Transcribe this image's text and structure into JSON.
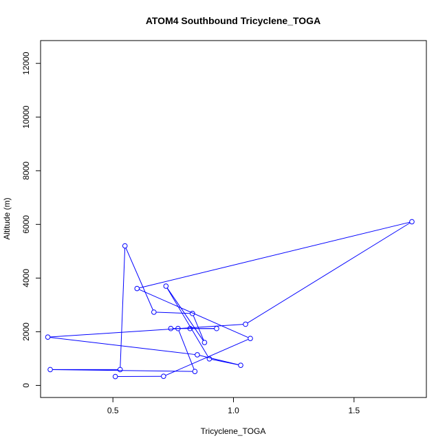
{
  "chart_data": {
    "type": "line",
    "title": "ATOM4 Southbound Tricyclene_TOGA",
    "xlabel": "Tricyclene_TOGA",
    "ylabel": "Altitude (m)",
    "xlim": [
      0.2,
      1.8
    ],
    "ylim": [
      -450,
      12850
    ],
    "xticks": [
      0.5,
      1.0,
      1.5
    ],
    "xtick_labels": [
      "0.5",
      "1.0",
      "1.5"
    ],
    "yticks": [
      0,
      2000,
      4000,
      6000,
      8000,
      10000,
      12000
    ],
    "ytick_labels": [
      "0",
      "2000",
      "4000",
      "6000",
      "8000",
      "10000",
      "12000"
    ],
    "grid": false,
    "legend": "none",
    "series": [
      {
        "color": "#0000ff",
        "marker": "open-circle",
        "points": [
          {
            "x": 0.51,
            "y": 330
          },
          {
            "x": 0.71,
            "y": 340
          },
          {
            "x": 1.07,
            "y": 1750
          },
          {
            "x": 0.6,
            "y": 3610
          },
          {
            "x": 1.74,
            "y": 6100
          },
          {
            "x": 1.05,
            "y": 2280
          },
          {
            "x": 0.23,
            "y": 1800
          },
          {
            "x": 0.85,
            "y": 1140
          },
          {
            "x": 1.03,
            "y": 750
          },
          {
            "x": 0.9,
            "y": 990
          },
          {
            "x": 0.72,
            "y": 3700
          },
          {
            "x": 0.88,
            "y": 1600
          },
          {
            "x": 0.83,
            "y": 2680
          },
          {
            "x": 0.67,
            "y": 2730
          },
          {
            "x": 0.55,
            "y": 5200
          },
          {
            "x": 0.53,
            "y": 590
          },
          {
            "x": 0.24,
            "y": 590
          },
          {
            "x": 0.84,
            "y": 520
          },
          {
            "x": 0.77,
            "y": 2120
          },
          {
            "x": 0.74,
            "y": 2120
          },
          {
            "x": 0.93,
            "y": 2120
          },
          {
            "x": 0.82,
            "y": 2120
          }
        ]
      }
    ]
  }
}
